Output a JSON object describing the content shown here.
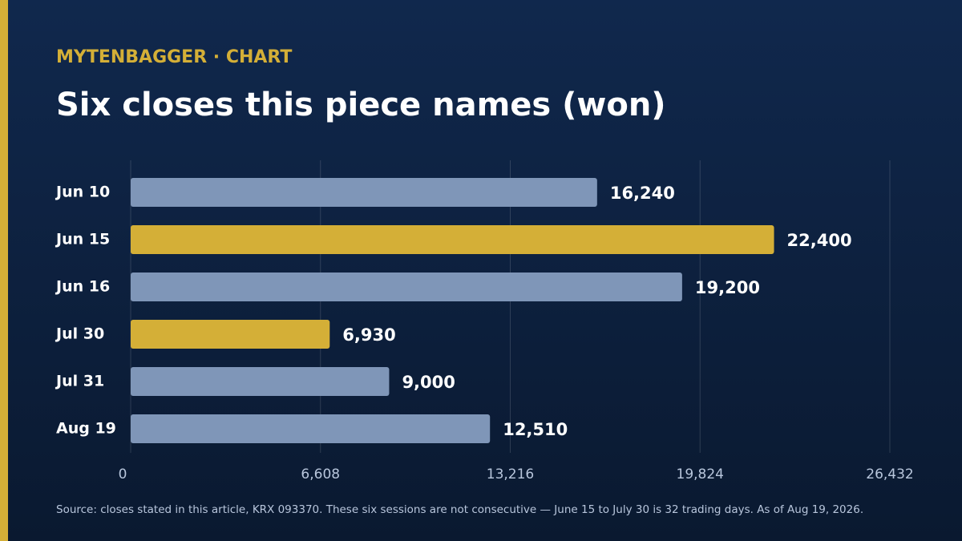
{
  "chart_data": {
    "type": "hbar",
    "kicker": "MYTENBAGGER · CHART",
    "title": "Six closes this piece names (won)",
    "categories": [
      "Jun 10",
      "Jun 15",
      "Jun 16",
      "Jul 30",
      "Jul 31",
      "Aug 19"
    ],
    "values": [
      16240,
      22400,
      19200,
      6930,
      9000,
      12510
    ],
    "value_labels": [
      "16,240",
      "22,400",
      "19,200",
      "6,930",
      "9,000",
      "12,510"
    ],
    "colors": [
      "#7f96b8",
      "#d4af37",
      "#7f96b8",
      "#d4af37",
      "#7f96b8",
      "#7f96b8"
    ],
    "xlim": [
      0,
      26432
    ],
    "xticks": [
      0,
      {
        "value": 6608,
        "label": "6,608"
      },
      {
        "value": 13216,
        "label": "13,216"
      },
      {
        "value": 19824,
        "label": "19,824"
      },
      {
        "value": 26432,
        "label": "26,432"
      }
    ],
    "grid": true,
    "note": "Source: closes stated in this article, KRX 093370. These six sessions are not consecutive — June 15 to July 30 is 32 trading days. As of Aug 19, 2026."
  }
}
